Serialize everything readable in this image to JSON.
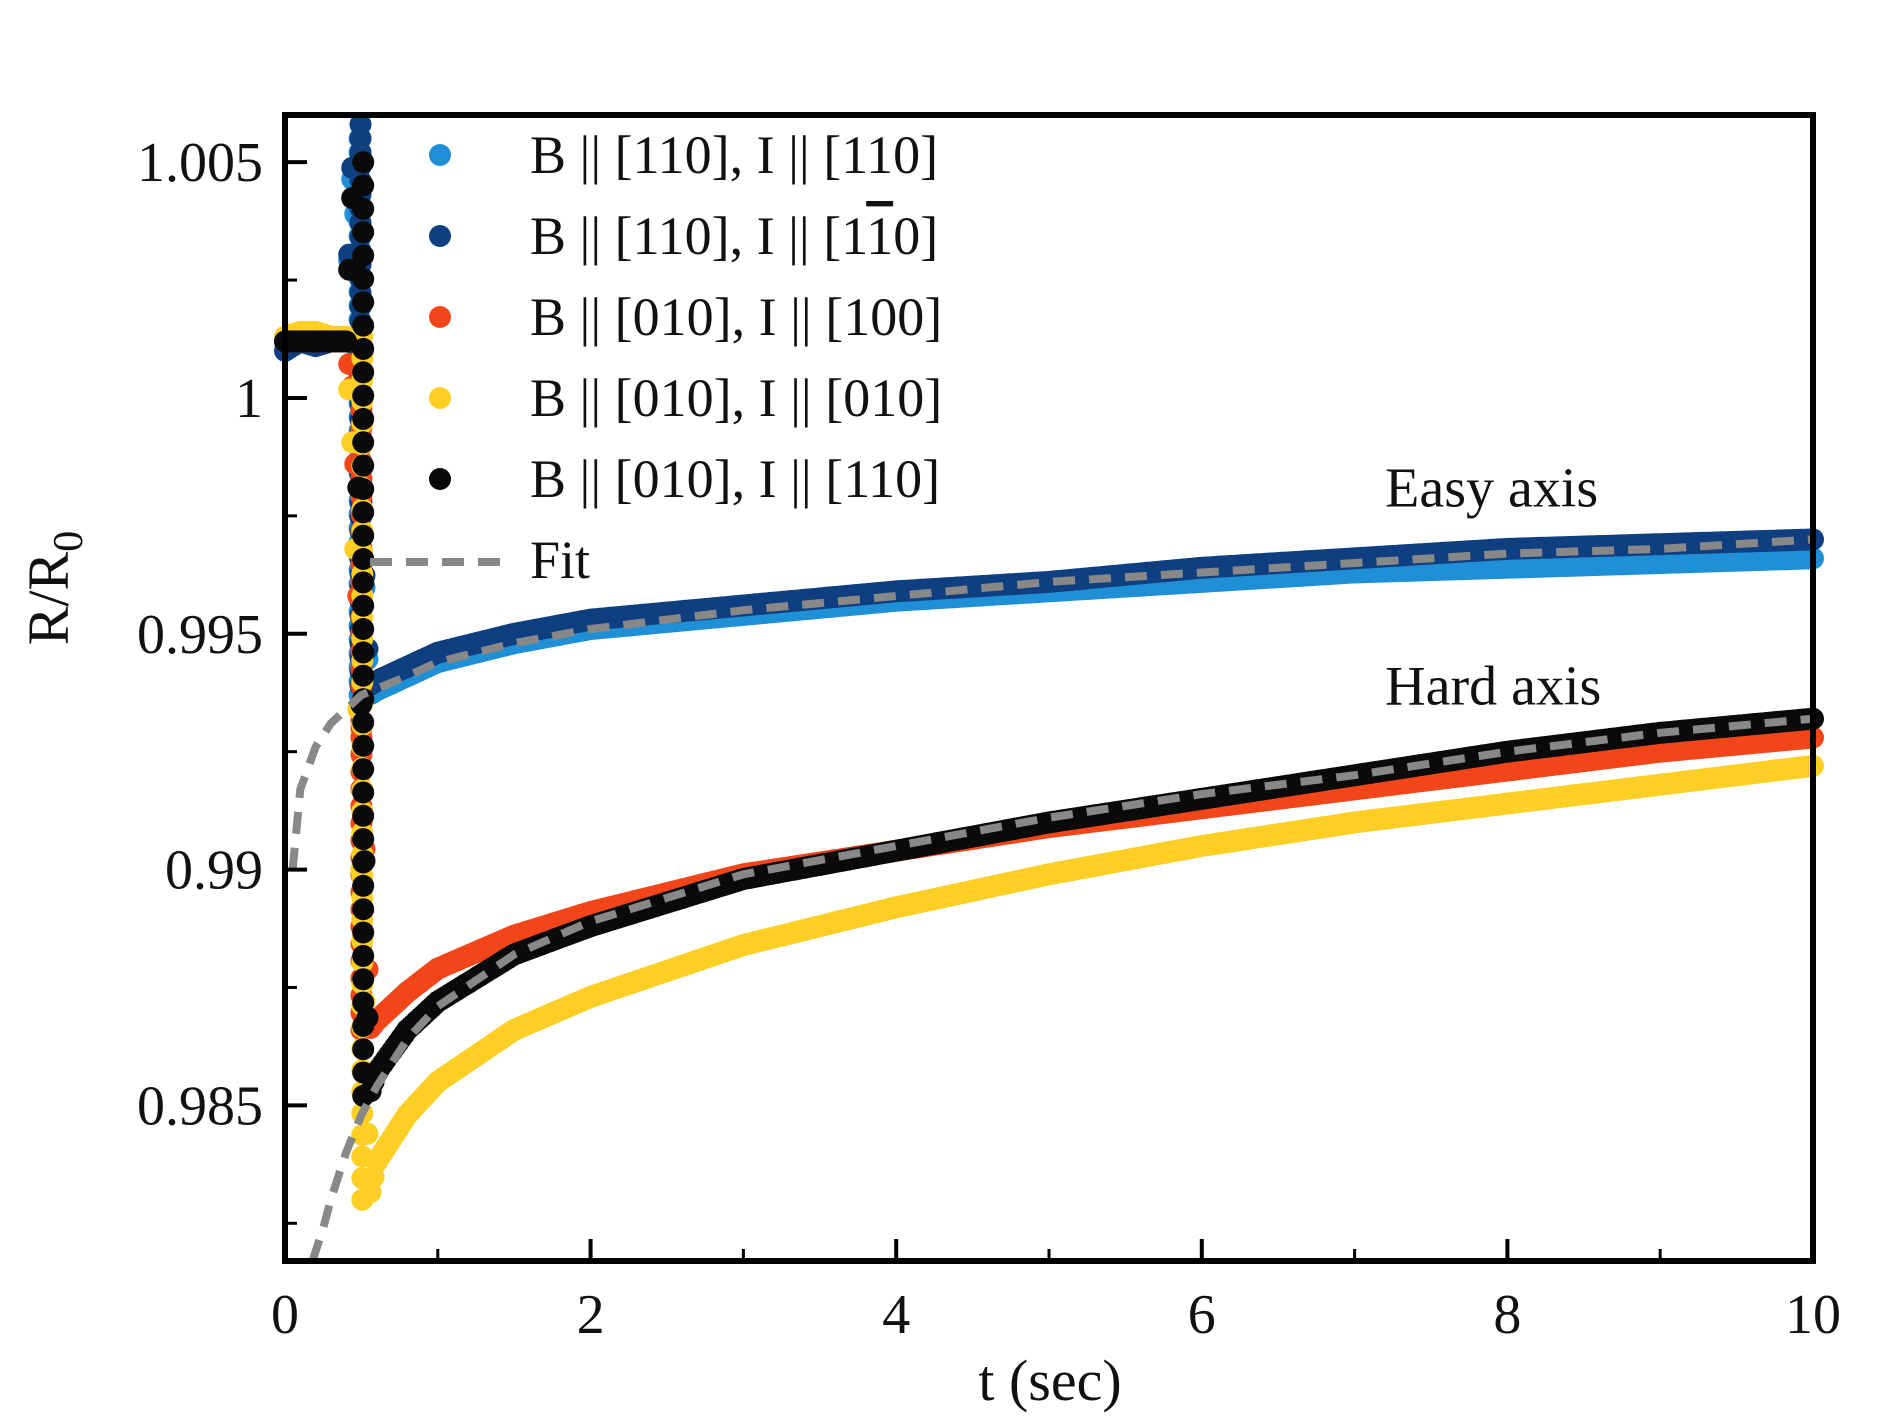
{
  "chart_data": {
    "type": "scatter",
    "title": "",
    "xlabel": "t (sec)",
    "ylabel": {
      "main": "R/R",
      "subscript": "0"
    },
    "xlim": [
      0,
      10
    ],
    "ylim": [
      0.9817,
      1.006
    ],
    "xticks": [
      0,
      2,
      4,
      6,
      8,
      10
    ],
    "xtick_labels": [
      "0",
      "2",
      "4",
      "6",
      "8",
      "10"
    ],
    "yticks": [
      0.985,
      0.99,
      0.995,
      1.0,
      1.005
    ],
    "ytick_labels": [
      "0.985",
      "0.99",
      "0.995",
      "1",
      "1.005"
    ],
    "grid": false,
    "legend_position": "top-left",
    "legend": [
      {
        "label_before": "B || [110], I || [110]",
        "label_bar_digit": "",
        "label_after": "",
        "color": "#1f8fd6",
        "marker": "dot"
      },
      {
        "label_before": "B || [110], I || [1",
        "label_bar_digit": "1",
        "label_after": "0]",
        "color": "#0f3f80",
        "marker": "dot"
      },
      {
        "label_before": "B || [010], I || [100]",
        "label_bar_digit": "",
        "label_after": "",
        "color": "#f2461a",
        "marker": "dot"
      },
      {
        "label_before": "B || [010], I || [010]",
        "label_bar_digit": "",
        "label_after": "",
        "color": "#fdcf25",
        "marker": "dot"
      },
      {
        "label_before": "B || [010], I || [110]",
        "label_bar_digit": "",
        "label_after": "",
        "color": "#0a0a0a",
        "marker": "dot"
      },
      {
        "label_before": "Fit",
        "label_bar_digit": "",
        "label_after": "",
        "color": "#888888",
        "marker": "dashed-line"
      }
    ],
    "annotations": [
      {
        "text": "Easy axis",
        "x": 7.2,
        "y": 0.9977
      },
      {
        "text": "Hard axis",
        "x": 7.2,
        "y": 0.9935
      }
    ],
    "series": [
      {
        "name": "B || [110], I || [110]",
        "color": "#1f8fd6",
        "x": [
          0,
          0.1,
          0.2,
          0.3,
          0.4,
          0.45,
          0.5,
          0.55,
          0.6,
          0.8,
          1,
          1.5,
          2,
          3,
          4,
          5,
          6,
          7,
          8,
          9,
          10
        ],
        "y": [
          1.0012,
          1.0012,
          1.0012,
          1.0012,
          1.0012,
          1.0055,
          0.9975,
          0.9937,
          0.9938,
          0.9941,
          0.9944,
          0.9948,
          0.9951,
          0.9954,
          0.9957,
          0.9959,
          0.9961,
          0.9963,
          0.9964,
          0.9965,
          0.9966
        ]
      },
      {
        "name": "B || [110], I || [1-10]",
        "color": "#0f3f80",
        "x": [
          0,
          0.1,
          0.2,
          0.3,
          0.4,
          0.45,
          0.5,
          0.55,
          0.6,
          0.8,
          1,
          1.5,
          2,
          3,
          4,
          5,
          6,
          7,
          8,
          9,
          10
        ],
        "y": [
          1.001,
          1.0012,
          1.0011,
          1.0012,
          1.0012,
          1.0058,
          0.9978,
          0.9939,
          0.994,
          0.9943,
          0.9946,
          0.995,
          0.9953,
          0.9956,
          0.9959,
          0.9961,
          0.9964,
          0.9966,
          0.9968,
          0.9969,
          0.997
        ]
      },
      {
        "name": "B || [010], I || [100]",
        "color": "#f2461a",
        "x": [
          0,
          0.1,
          0.2,
          0.3,
          0.4,
          0.45,
          0.5,
          0.55,
          0.6,
          0.8,
          1,
          1.5,
          2,
          3,
          4,
          5,
          6,
          7,
          8,
          9,
          10
        ],
        "y": [
          1.0012,
          1.0012,
          1.0012,
          1.0012,
          1.0012,
          1.0,
          0.993,
          0.9866,
          0.9868,
          0.9874,
          0.9879,
          0.9886,
          0.9891,
          0.9899,
          0.9904,
          0.9909,
          0.9913,
          0.9917,
          0.9921,
          0.9925,
          0.9928
        ]
      },
      {
        "name": "B || [010], I || [010]",
        "color": "#fdcf25",
        "x": [
          0,
          0.1,
          0.2,
          0.3,
          0.4,
          0.45,
          0.5,
          0.55,
          0.6,
          0.8,
          1,
          1.5,
          2,
          3,
          4,
          5,
          6,
          7,
          8,
          9,
          10
        ],
        "y": [
          1.0013,
          1.0014,
          1.0014,
          1.0013,
          1.0013,
          0.9985,
          0.99,
          0.983,
          0.9838,
          0.9848,
          0.9855,
          0.9866,
          0.9873,
          0.9884,
          0.9892,
          0.9899,
          0.9905,
          0.991,
          0.9914,
          0.9918,
          0.9922
        ]
      },
      {
        "name": "B || [010], I || [110]",
        "color": "#0a0a0a",
        "x": [
          0,
          0.1,
          0.2,
          0.3,
          0.4,
          0.45,
          0.5,
          0.55,
          0.6,
          0.8,
          1,
          1.5,
          2,
          3,
          4,
          5,
          6,
          7,
          8,
          9,
          10
        ],
        "y": [
          1.0012,
          1.0012,
          1.0012,
          1.0012,
          1.0012,
          1.005,
          0.9935,
          0.9852,
          0.9857,
          0.9866,
          0.9872,
          0.9882,
          0.9888,
          0.9898,
          0.9904,
          0.991,
          0.9915,
          0.992,
          0.9925,
          0.9929,
          0.9932
        ]
      }
    ],
    "fits": [
      {
        "name": "Easy axis fit",
        "color": "#888888",
        "x": [
          0.05,
          0.1,
          0.2,
          0.3,
          0.5,
          0.8,
          1,
          1.5,
          2,
          3,
          4,
          5,
          6,
          7,
          8,
          9,
          10
        ],
        "y": [
          0.99,
          0.9917,
          0.9926,
          0.9931,
          0.9937,
          0.9941,
          0.9944,
          0.9948,
          0.9951,
          0.9955,
          0.9958,
          0.9961,
          0.9963,
          0.9965,
          0.9967,
          0.9968,
          0.997
        ]
      },
      {
        "name": "Hard axis fit",
        "color": "#888888",
        "x": [
          0.18,
          0.25,
          0.3,
          0.4,
          0.5,
          0.6,
          0.8,
          1,
          1.5,
          2,
          3,
          4,
          5,
          6,
          7,
          8,
          9,
          10
        ],
        "y": [
          0.9816,
          0.9824,
          0.983,
          0.984,
          0.9848,
          0.9854,
          0.9864,
          0.9871,
          0.9882,
          0.9889,
          0.9899,
          0.9905,
          0.9911,
          0.9916,
          0.992,
          0.9925,
          0.9929,
          0.9932
        ]
      }
    ]
  }
}
